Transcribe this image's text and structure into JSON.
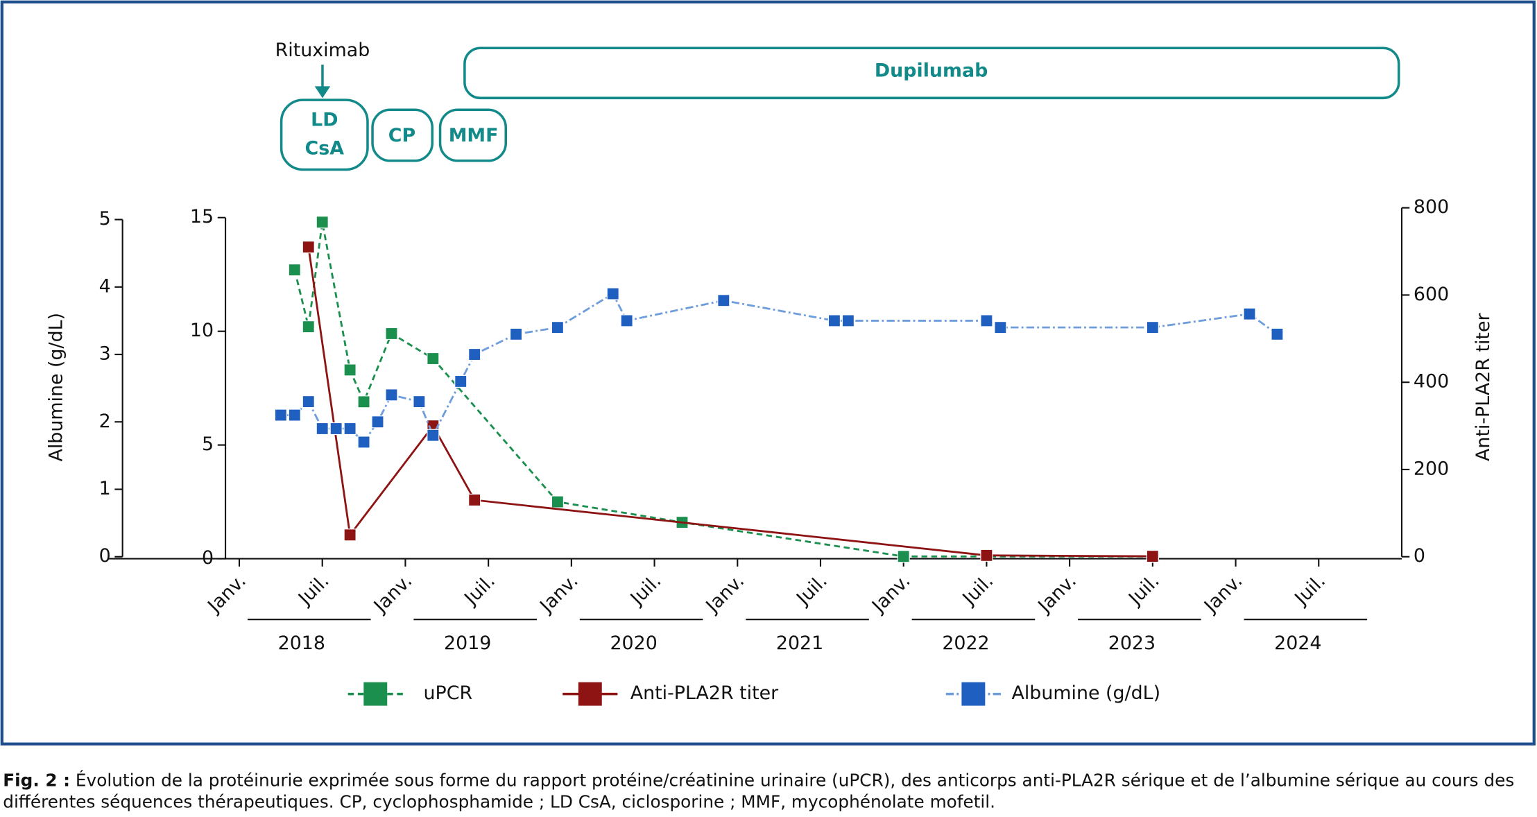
{
  "chart_data": {
    "type": "line",
    "y3label": "Albumine (g/dL)",
    "y2label": "Anti-PLA2R titer",
    "xlim": [
      "2017-12",
      "2025-01"
    ],
    "xticks": [
      {
        "value": "2018-01",
        "label": "Janv."
      },
      {
        "value": "2018-07",
        "label": "Juil."
      },
      {
        "value": "2019-01",
        "label": "Janv."
      },
      {
        "value": "2019-07",
        "label": "Juil."
      },
      {
        "value": "2020-01",
        "label": "Janv."
      },
      {
        "value": "2020-07",
        "label": "Juil."
      },
      {
        "value": "2021-01",
        "label": "Janv."
      },
      {
        "value": "2021-07",
        "label": "Juil."
      },
      {
        "value": "2022-01",
        "label": "Janv."
      },
      {
        "value": "2022-07",
        "label": "Juil."
      },
      {
        "value": "2023-01",
        "label": "Janv."
      },
      {
        "value": "2023-07",
        "label": "Juil."
      },
      {
        "value": "2024-01",
        "label": "Janv."
      },
      {
        "value": "2024-07",
        "label": "Juil."
      }
    ],
    "years": [
      "2018",
      "2019",
      "2020",
      "2021",
      "2022",
      "2023",
      "2024"
    ],
    "ylim": [
      0,
      15
    ],
    "yticks": [
      0,
      5,
      10,
      15
    ],
    "y2lim": [
      0,
      800
    ],
    "y2ticks": [
      0,
      200,
      400,
      600,
      800
    ],
    "y3lim": [
      0,
      5
    ],
    "y3ticks": [
      0,
      1,
      2,
      3,
      4,
      5
    ],
    "series": [
      {
        "name": "uPCR",
        "color": "#1a8f4e",
        "axis": "y",
        "dash": "dashed",
        "x": [
          "2018-05",
          "2018-06",
          "2018-07",
          "2018-09",
          "2018-10",
          "2018-12",
          "2019-03",
          "2019-12",
          "2020-09",
          "2022-01",
          "2023-07"
        ],
        "values": [
          12.7,
          10.2,
          14.8,
          8.3,
          6.9,
          9.9,
          8.8,
          2.5,
          1.6,
          0.1,
          0.1
        ]
      },
      {
        "name": "Anti-PLA2R titer",
        "color": "#8e1414",
        "axis": "y2",
        "dash": "solid",
        "x": [
          "2018-06",
          "2018-09",
          "2019-03",
          "2019-06",
          "2022-07",
          "2023-07"
        ],
        "values": [
          710,
          50,
          300,
          130,
          3,
          1
        ]
      },
      {
        "name": "Albumine (g/dL)",
        "color": "#1f5fbf",
        "axis": "y3",
        "dash": "dashdot",
        "x": [
          "2018-04",
          "2018-05",
          "2018-06",
          "2018-07",
          "2018-08",
          "2018-09",
          "2018-10",
          "2018-11",
          "2018-12",
          "2019-02",
          "2019-03",
          "2019-05",
          "2019-06",
          "2019-09",
          "2019-12",
          "2020-04",
          "2020-05",
          "2020-12",
          "2021-08",
          "2021-09",
          "2022-07",
          "2022-08",
          "2023-07",
          "2024-02",
          "2024-04"
        ],
        "values": [
          2.1,
          2.1,
          2.3,
          1.9,
          1.9,
          1.9,
          1.7,
          2.0,
          2.4,
          2.3,
          1.8,
          2.6,
          3.0,
          3.3,
          3.4,
          3.9,
          3.5,
          3.8,
          3.5,
          3.5,
          3.5,
          3.4,
          3.4,
          3.6,
          3.3
        ]
      }
    ]
  },
  "treatments": {
    "arrow_label": "Rituximab",
    "boxes": [
      [
        "LD",
        "CsA"
      ],
      [
        "CP"
      ],
      [
        "MMF"
      ],
      [
        "Dupilumab"
      ]
    ]
  },
  "caption": {
    "label": "Fig. 2 :",
    "text": "Évolution de la protéinurie exprimée sous forme du rapport protéine/créatinine urinaire (uPCR), des anticorps anti-PLA2R sérique et de l’albumine sérique au cours des différentes séquences thérapeutiques. CP, cyclophosphamide ; LD CsA, ciclosporine ; MMF, mycophénolate mofetil."
  }
}
